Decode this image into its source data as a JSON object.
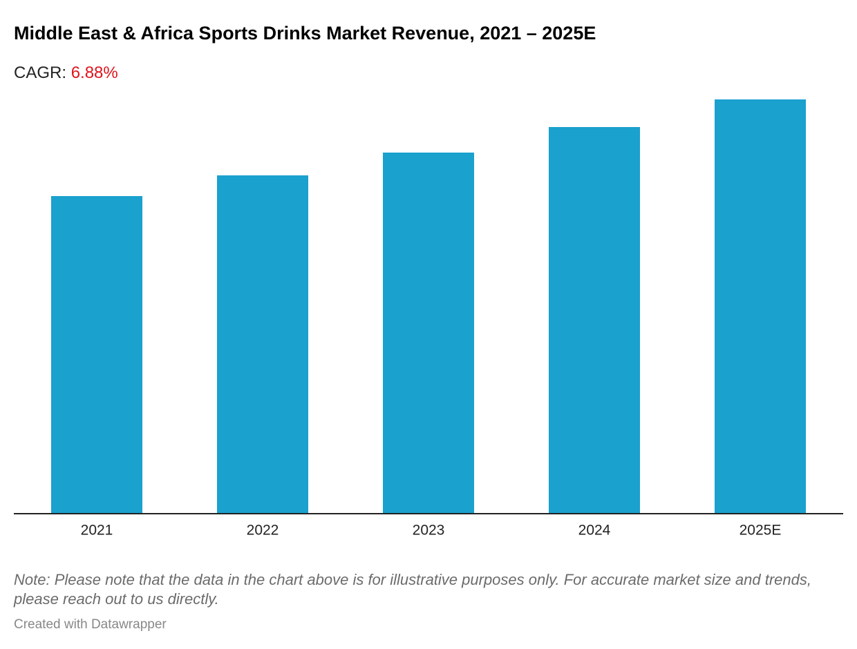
{
  "chart_data": {
    "type": "bar",
    "title": "Middle East & Africa Sports Drinks Market Revenue, 2021 – 2025E",
    "subtitle_label": "CAGR:",
    "subtitle_value": "6.88%",
    "categories": [
      "2021",
      "2022",
      "2023",
      "2024",
      "2025E"
    ],
    "values": [
      460,
      490,
      523,
      560,
      600
    ],
    "color": "#1aa1ce",
    "ylim": [
      0,
      600
    ],
    "note": "Note: Please note that the data in the chart above is for illustrative purposes only. For accurate market size and trends, please reach out to us directly.",
    "credit": "Created with Datawrapper"
  }
}
